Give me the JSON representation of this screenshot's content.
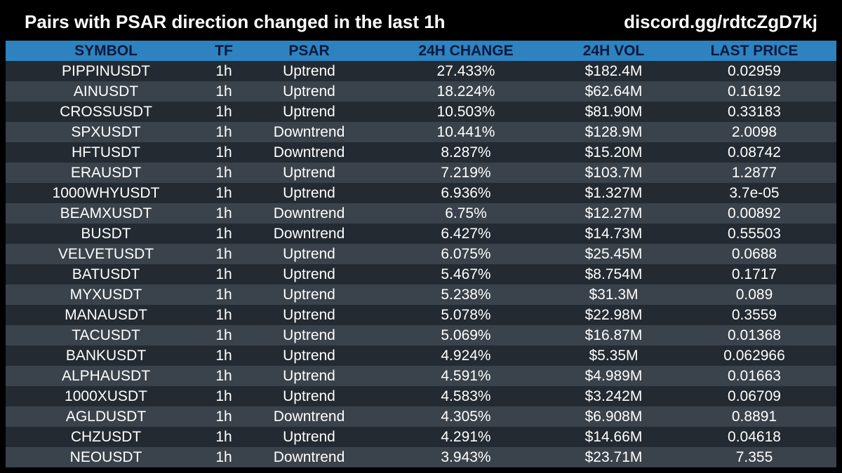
{
  "header": {
    "title": "Pairs with PSAR direction changed in the last 1h",
    "link": "discord.gg/rdtcZgD7kj"
  },
  "colors": {
    "background": "#000000",
    "header_row": "#2e82c0",
    "header_text": "#0a1a3c",
    "row_dark": "#232a31",
    "row_light": "#3a424b"
  },
  "table": {
    "columns": [
      "SYMBOL",
      "TF",
      "PSAR",
      "24H CHANGE",
      "24H VOL",
      "LAST PRICE"
    ],
    "rows": [
      [
        "PIPPINUSDT",
        "1h",
        "Uptrend",
        "27.433%",
        "$182.4M",
        "0.02959"
      ],
      [
        "AINUSDT",
        "1h",
        "Uptrend",
        "18.224%",
        "$62.64M",
        "0.16192"
      ],
      [
        "CROSSUSDT",
        "1h",
        "Uptrend",
        "10.503%",
        "$81.90M",
        "0.33183"
      ],
      [
        "SPXUSDT",
        "1h",
        "Downtrend",
        "10.441%",
        "$128.9M",
        "2.0098"
      ],
      [
        "HFTUSDT",
        "1h",
        "Downtrend",
        "8.287%",
        "$15.20M",
        "0.08742"
      ],
      [
        "ERAUSDT",
        "1h",
        "Uptrend",
        "7.219%",
        "$103.7M",
        "1.2877"
      ],
      [
        "1000WHYUSDT",
        "1h",
        "Uptrend",
        "6.936%",
        "$1.327M",
        "3.7e-05"
      ],
      [
        "BEAMXUSDT",
        "1h",
        "Downtrend",
        "6.75%",
        "$12.27M",
        "0.00892"
      ],
      [
        "BUSDT",
        "1h",
        "Downtrend",
        "6.427%",
        "$14.73M",
        "0.55503"
      ],
      [
        "VELVETUSDT",
        "1h",
        "Uptrend",
        "6.075%",
        "$25.45M",
        "0.0688"
      ],
      [
        "BATUSDT",
        "1h",
        "Uptrend",
        "5.467%",
        "$8.754M",
        "0.1717"
      ],
      [
        "MYXUSDT",
        "1h",
        "Uptrend",
        "5.238%",
        "$31.3M",
        "0.089"
      ],
      [
        "MANAUSDT",
        "1h",
        "Uptrend",
        "5.078%",
        "$22.98M",
        "0.3559"
      ],
      [
        "TACUSDT",
        "1h",
        "Uptrend",
        "5.069%",
        "$16.87M",
        "0.01368"
      ],
      [
        "BANKUSDT",
        "1h",
        "Uptrend",
        "4.924%",
        "$5.35M",
        "0.062966"
      ],
      [
        "ALPHAUSDT",
        "1h",
        "Uptrend",
        "4.591%",
        "$4.989M",
        "0.01663"
      ],
      [
        "1000XUSDT",
        "1h",
        "Uptrend",
        "4.583%",
        "$3.242M",
        "0.06709"
      ],
      [
        "AGLDUSDT",
        "1h",
        "Downtrend",
        "4.305%",
        "$6.908M",
        "0.8891"
      ],
      [
        "CHZUSDT",
        "1h",
        "Uptrend",
        "4.291%",
        "$14.66M",
        "0.04618"
      ],
      [
        "NEOUSDT",
        "1h",
        "Downtrend",
        "3.943%",
        "$23.71M",
        "7.355"
      ]
    ]
  }
}
